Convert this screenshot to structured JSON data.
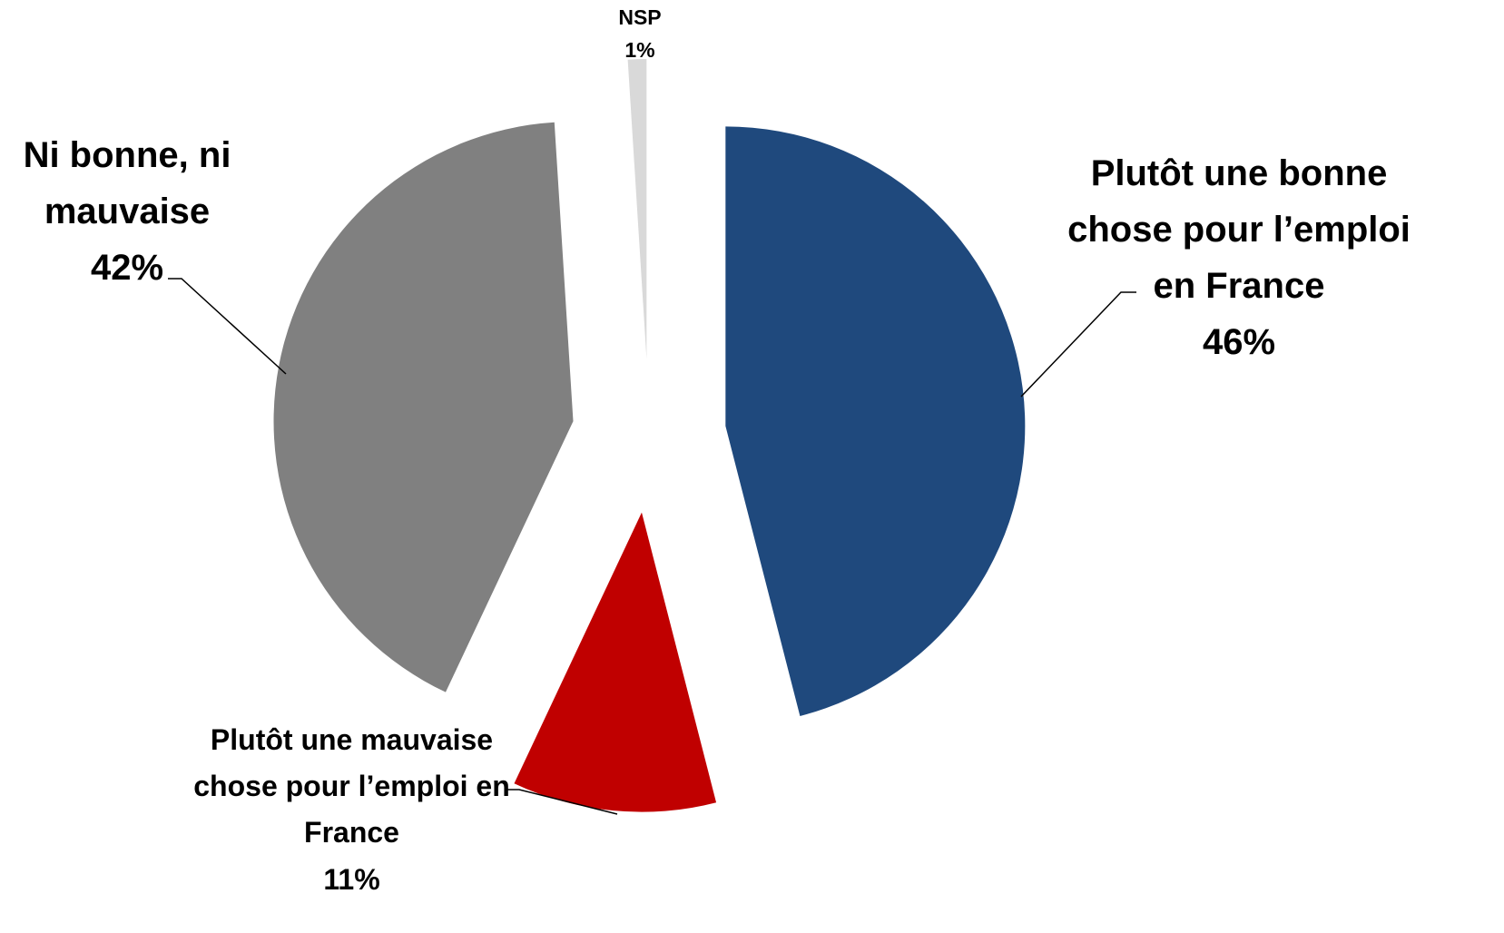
{
  "chart_data": {
    "type": "pie",
    "categories": [
      "Plutôt une bonne chose pour l’emploi en France",
      "Plutôt une mauvaise chose pour l’emploi en France",
      "Ni bonne, ni mauvaise",
      "NSP"
    ],
    "values": [
      46,
      11,
      42,
      1
    ],
    "value_labels": [
      "46%",
      "11%",
      "42%",
      "1%"
    ],
    "colors": [
      "#1f497d",
      "#c00000",
      "#808080",
      "#d9d9d9"
    ]
  }
}
